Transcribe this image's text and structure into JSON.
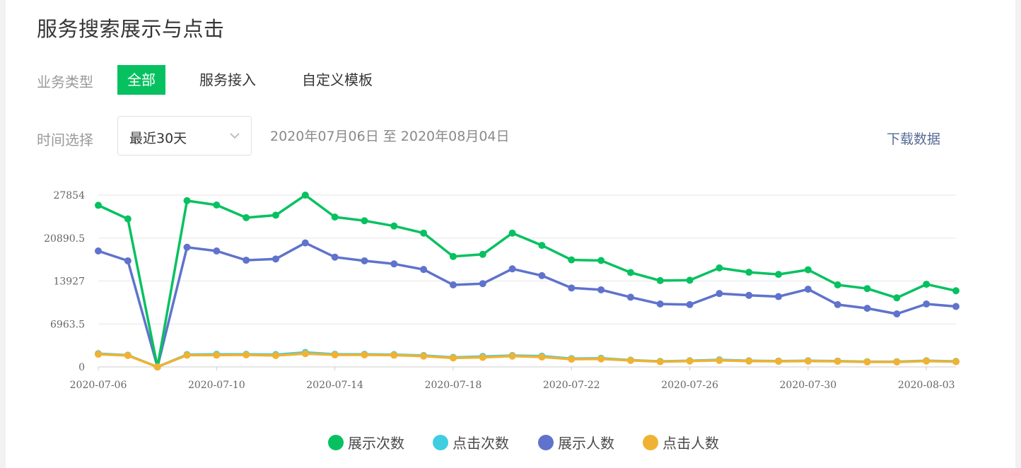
{
  "page": {
    "title": "服务搜索展示与点击"
  },
  "filters": {
    "type_label": "业务类型",
    "type_tabs": [
      "全部",
      "服务接入",
      "自定义模板"
    ],
    "time_label": "时间选择",
    "time_selected": "最近30天",
    "date_range": "2020年07月06日 至 2020年08月04日",
    "download_label": "下载数据"
  },
  "colors": {
    "accent": "#07c160",
    "series": [
      "#07c160",
      "#3fcde0",
      "#5f73cc",
      "#f0b232"
    ],
    "grid": "#e6e6e6",
    "axis": "#cccccc"
  },
  "chart_data": {
    "type": "line",
    "y_ticks": [
      "0",
      "6963.5",
      "13927",
      "20890.5",
      "27854"
    ],
    "ylim": [
      0,
      27854
    ],
    "x_tick_labels": [
      "2020-07-06",
      "2020-07-10",
      "2020-07-14",
      "2020-07-18",
      "2020-07-22",
      "2020-07-26",
      "2020-07-30",
      "2020-08-03"
    ],
    "x": [
      "2020-07-06",
      "2020-07-07",
      "2020-07-08",
      "2020-07-09",
      "2020-07-10",
      "2020-07-11",
      "2020-07-12",
      "2020-07-13",
      "2020-07-14",
      "2020-07-15",
      "2020-07-16",
      "2020-07-17",
      "2020-07-18",
      "2020-07-19",
      "2020-07-20",
      "2020-07-21",
      "2020-07-22",
      "2020-07-23",
      "2020-07-24",
      "2020-07-25",
      "2020-07-26",
      "2020-07-27",
      "2020-07-28",
      "2020-07-29",
      "2020-07-30",
      "2020-07-31",
      "2020-08-01",
      "2020-08-02",
      "2020-08-03",
      "2020-08-04"
    ],
    "grid": true,
    "legend_position": "bottom",
    "series": [
      {
        "name": "展示次数",
        "values": [
          26200,
          24000,
          0,
          26950,
          26250,
          24200,
          24600,
          27850,
          24300,
          23700,
          22850,
          21700,
          17900,
          18250,
          21700,
          19700,
          17350,
          17250,
          15300,
          14000,
          14050,
          16050,
          15350,
          15000,
          15750,
          13300,
          12700,
          11200,
          13400,
          12350
        ]
      },
      {
        "name": "点击次数",
        "values": [
          2150,
          1900,
          0,
          2000,
          2050,
          2050,
          2000,
          2350,
          2050,
          2050,
          2000,
          1850,
          1550,
          1700,
          1850,
          1750,
          1350,
          1400,
          1100,
          900,
          1000,
          1150,
          1000,
          950,
          1000,
          950,
          850,
          850,
          1000,
          900
        ]
      },
      {
        "name": "展示人数",
        "values": [
          18800,
          17200,
          0,
          19400,
          18800,
          17300,
          17500,
          20100,
          17800,
          17200,
          16700,
          15800,
          13300,
          13500,
          15900,
          14800,
          12800,
          12500,
          11300,
          10200,
          10100,
          11900,
          11600,
          11400,
          12600,
          10100,
          9500,
          8600,
          10200,
          9800
        ]
      },
      {
        "name": "点击人数",
        "values": [
          2050,
          1850,
          0,
          1900,
          1900,
          1950,
          1850,
          2150,
          1950,
          1950,
          1900,
          1750,
          1450,
          1550,
          1750,
          1600,
          1250,
          1300,
          1050,
          850,
          950,
          1050,
          950,
          900,
          950,
          900,
          800,
          800,
          950,
          850
        ]
      }
    ]
  }
}
